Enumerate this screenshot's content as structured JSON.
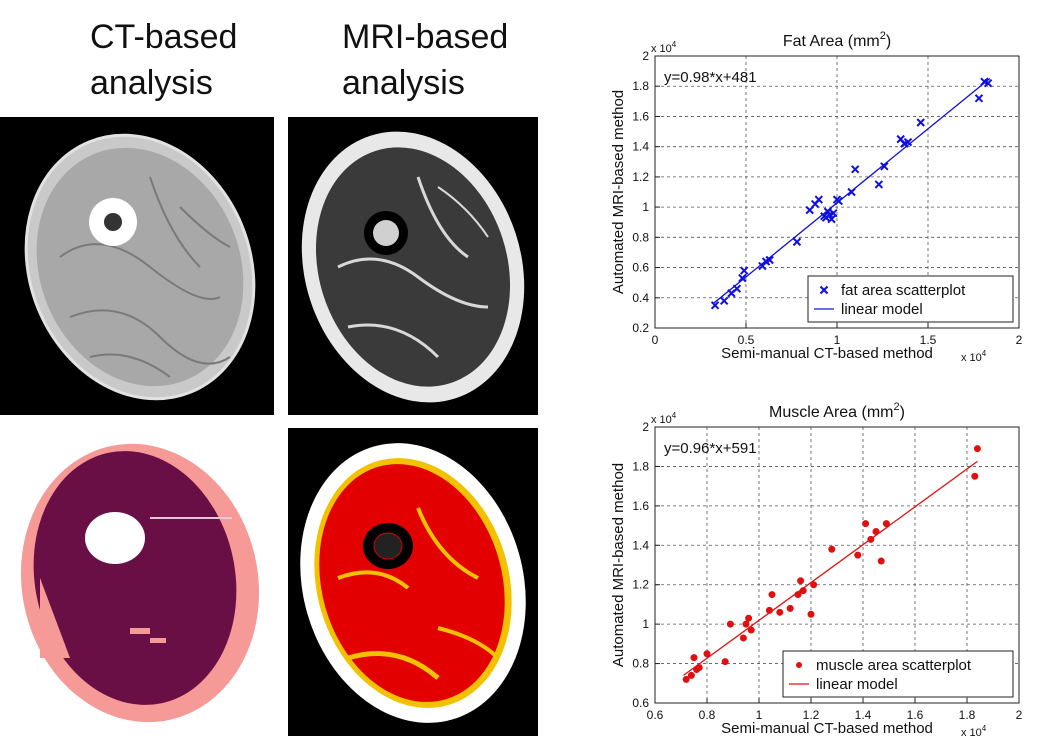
{
  "headers": {
    "ct": [
      "CT-based",
      "analysis"
    ],
    "mri": [
      "MRI-based",
      "analysis"
    ]
  },
  "colors": {
    "fat_series": "#1010e0",
    "muscle_series": "#e01010",
    "ct_fat": "#f59a96",
    "ct_muscle": "#6a0f45",
    "mri_fat": "#f2c200",
    "mri_muscle": "#e30000"
  },
  "chart_data": [
    {
      "type": "scatter",
      "title": "Fat Area (mm",
      "title_sup": "2",
      "title_close": ")",
      "xlabel": "Semi-manual CT-based method",
      "ylabel": "Automated MRI-based method",
      "x_multiplier": "x 10",
      "x_multiplier_exp": "4",
      "y_multiplier": "x 10",
      "y_multiplier_exp": "4",
      "equation": "y=0.98*x+481",
      "xlim": [
        0,
        20000
      ],
      "ylim": [
        2000,
        20000
      ],
      "xticks": [
        0,
        5000,
        10000,
        15000,
        20000
      ],
      "xtick_labels": [
        "0",
        "0.5",
        "1",
        "1.5",
        "2"
      ],
      "yticks": [
        2000,
        4000,
        6000,
        8000,
        10000,
        12000,
        14000,
        16000,
        18000,
        20000
      ],
      "ytick_labels": [
        "0.2",
        "0.4",
        "0.6",
        "0.8",
        "1",
        "1.2",
        "1.4",
        "1.6",
        "1.8",
        "2"
      ],
      "grid": true,
      "legend_position": "bottom-right",
      "marker": "x",
      "color": "#1010e0",
      "series": [
        {
          "name": "fat area scatterplot",
          "x": [
            3300,
            3800,
            4200,
            4500,
            4800,
            4900,
            5900,
            6100,
            6300,
            7800,
            8500,
            8800,
            9000,
            9300,
            9400,
            9500,
            9600,
            9700,
            9800,
            10000,
            10100,
            10800,
            11000,
            12300,
            12600,
            13500,
            13700,
            13900,
            14600,
            17800,
            18100,
            18300
          ],
          "y": [
            3500,
            3800,
            4300,
            4600,
            5300,
            5800,
            6100,
            6400,
            6500,
            7700,
            9800,
            10200,
            10500,
            9400,
            9300,
            9700,
            9500,
            9200,
            9600,
            10500,
            10400,
            11000,
            12500,
            11500,
            12700,
            14500,
            14200,
            14300,
            15600,
            17200,
            18300,
            18200
          ]
        }
      ],
      "fit": {
        "name": "linear model",
        "slope": 0.98,
        "intercept": 481,
        "x_range": [
          3200,
          18400
        ]
      }
    },
    {
      "type": "scatter",
      "title": "Muscle Area (mm",
      "title_sup": "2",
      "title_close": ")",
      "xlabel": "Semi-manual CT-based method",
      "ylabel": "Automated MRI-based method",
      "x_multiplier": "x 10",
      "x_multiplier_exp": "4",
      "y_multiplier": "x 10",
      "y_multiplier_exp": "4",
      "equation": "y=0.96*x+591",
      "xlim": [
        6000,
        20000
      ],
      "ylim": [
        6000,
        20000
      ],
      "xticks": [
        6000,
        8000,
        10000,
        12000,
        14000,
        16000,
        18000,
        20000
      ],
      "xtick_labels": [
        "0.6",
        "0.8",
        "1",
        "1.2",
        "1.4",
        "1.6",
        "1.8",
        "2"
      ],
      "yticks": [
        6000,
        8000,
        10000,
        12000,
        14000,
        16000,
        18000,
        20000
      ],
      "ytick_labels": [
        "0.6",
        "0.8",
        "1",
        "1.2",
        "1.4",
        "1.6",
        "1.8",
        "2"
      ],
      "grid": true,
      "legend_position": "bottom-right",
      "marker": "o",
      "color": "#e01010",
      "series": [
        {
          "name": "muscle area scatterplot",
          "x": [
            7200,
            7400,
            7500,
            7600,
            7700,
            8000,
            8700,
            8900,
            9400,
            9500,
            9600,
            9700,
            10400,
            10500,
            10800,
            11200,
            11500,
            11600,
            11700,
            12000,
            12100,
            12800,
            13800,
            14100,
            14300,
            14500,
            14700,
            14900,
            18300,
            18400
          ],
          "y": [
            7200,
            7400,
            8300,
            7700,
            7800,
            8500,
            8100,
            10000,
            9300,
            10000,
            10300,
            9700,
            10700,
            11500,
            10600,
            10800,
            11500,
            12200,
            11700,
            10500,
            12000,
            13800,
            13500,
            15100,
            14300,
            14700,
            13200,
            15100,
            17500,
            18900
          ]
        }
      ],
      "fit": {
        "name": "linear model",
        "slope": 0.96,
        "intercept": 591,
        "x_range": [
          7100,
          18400
        ]
      }
    }
  ]
}
